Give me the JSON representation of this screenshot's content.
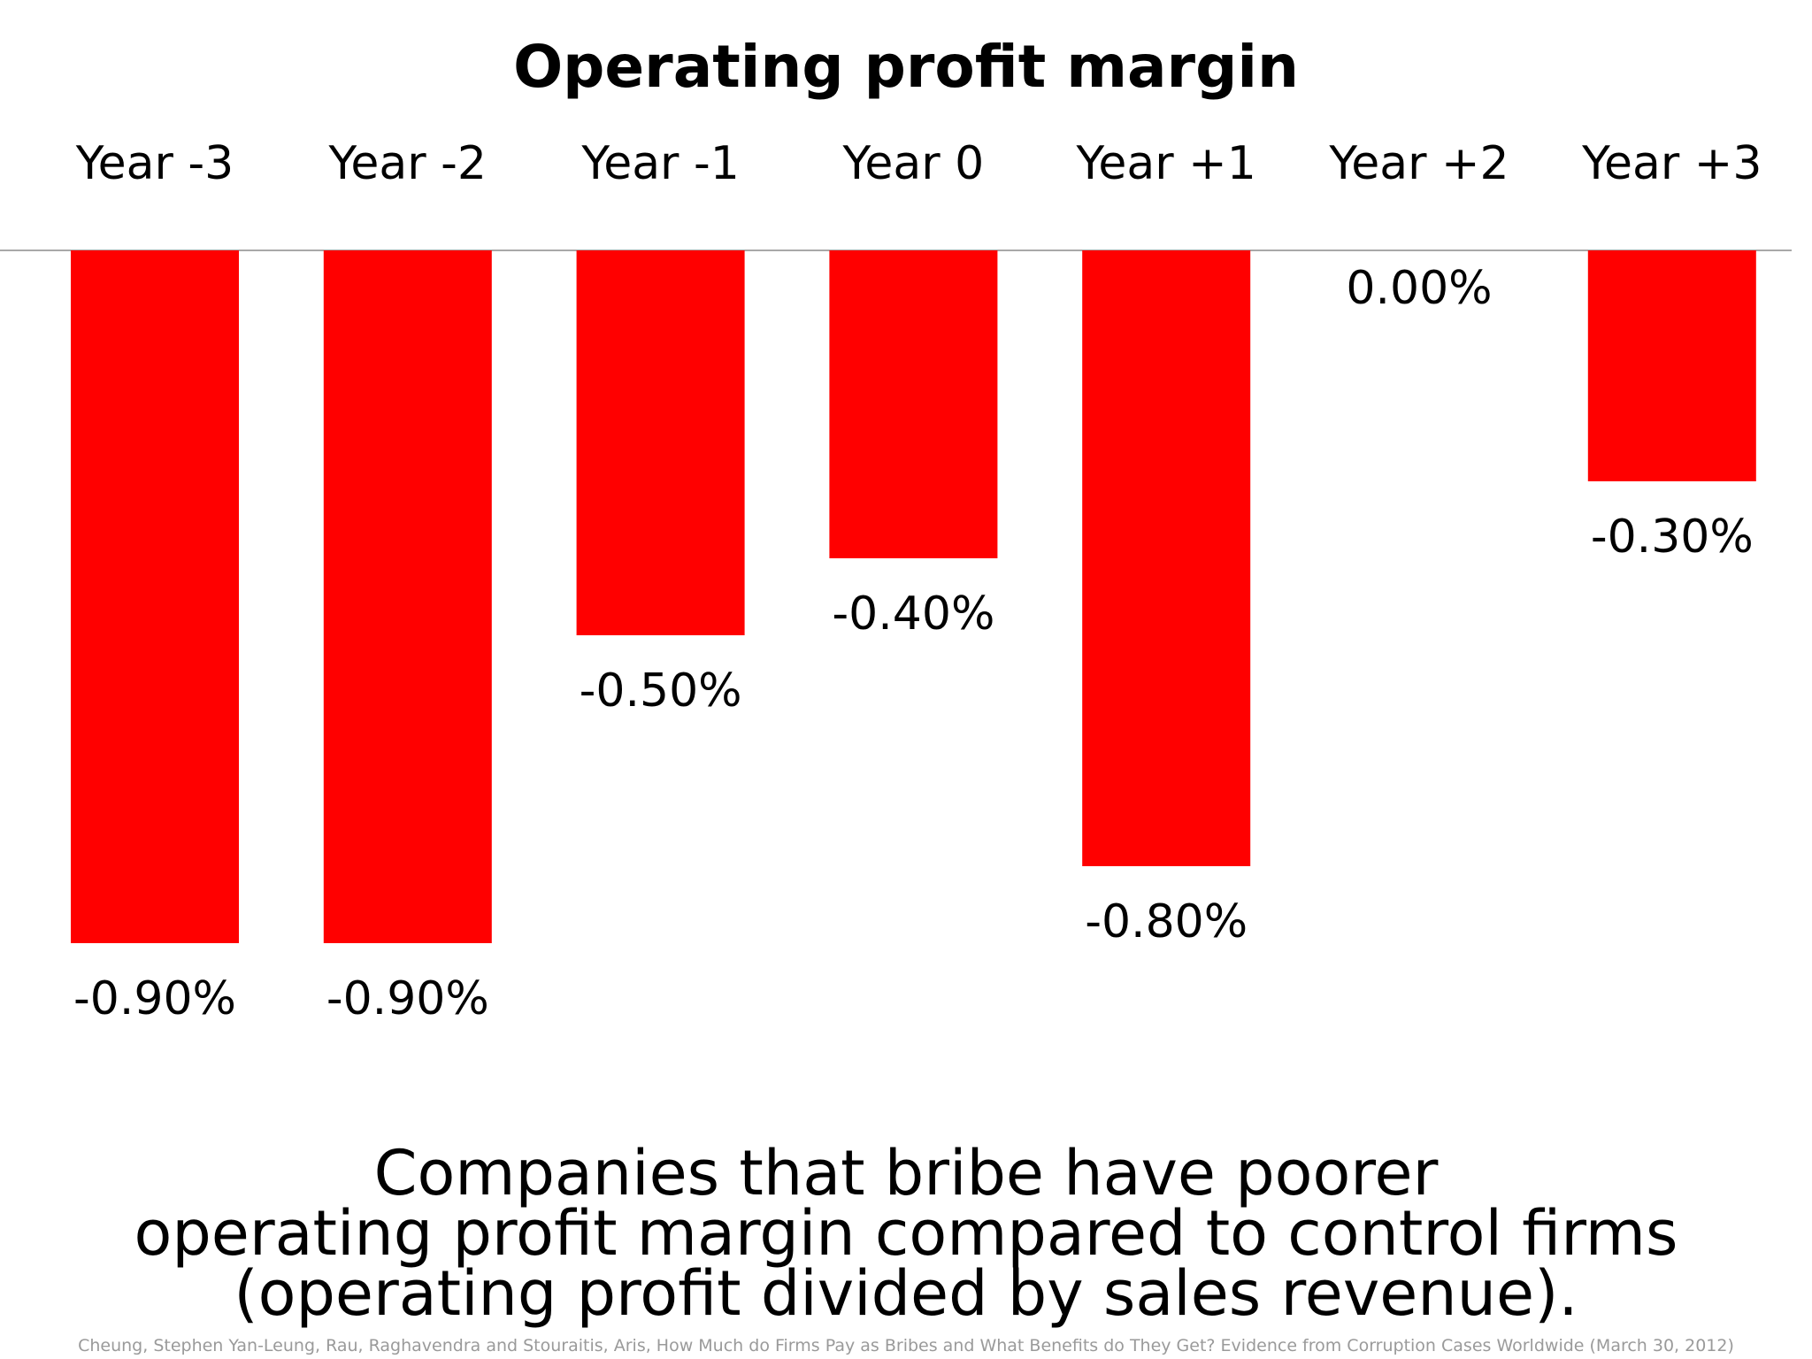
{
  "chart_data": {
    "type": "bar",
    "title": "Operating profit margin",
    "categories": [
      "Year -3",
      "Year -2",
      "Year -1",
      "Year 0",
      "Year +1",
      "Year +2",
      "Year +3"
    ],
    "values": [
      -0.9,
      -0.9,
      -0.5,
      -0.4,
      -0.8,
      0.0,
      -0.3
    ],
    "data_labels": [
      "-0.90%",
      "-0.90%",
      "-0.50%",
      "-0.40%",
      "-0.80%",
      "0.00%",
      "-0.30%"
    ],
    "xlabel": "",
    "ylabel": "",
    "ylim": [
      -0.9,
      0
    ],
    "grid": false,
    "legend": "none",
    "category_axis_position": "top",
    "bar_color": "#FF0000",
    "axis_color": "#8C8C8C"
  },
  "caption": {
    "lines": [
      "Companies that bribe have poorer",
      "operating profit margin compared to control firms",
      "(operating profit divided by sales revenue)."
    ]
  },
  "source": "Cheung, Stephen Yan-Leung, Rau, Raghavendra and Stouraitis, Aris, How Much do Firms Pay as Bribes and What Benefits do They Get? Evidence from Corruption Cases Worldwide (March 30, 2012)"
}
